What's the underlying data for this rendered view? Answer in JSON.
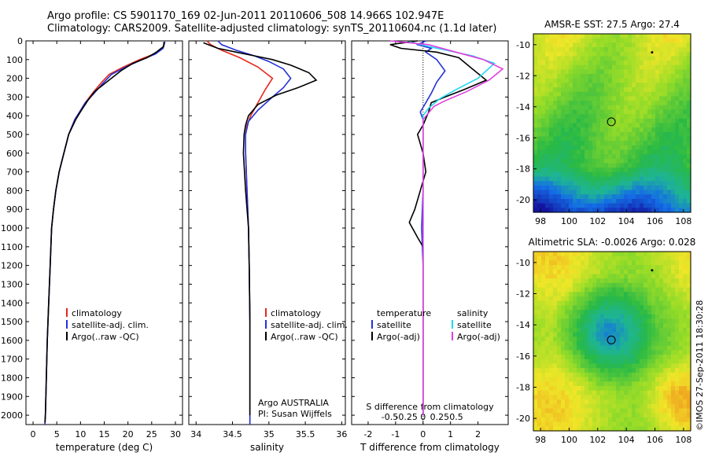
{
  "header": {
    "line1": "Argo profile: CS 5901170_169 02-Jun-2011 20110606_508 14.966S 102.947E",
    "line2": "Climatology: CARS2009. Satellite-adjusted climatology: synTS_20110604.nc (1.1d later)"
  },
  "colors": {
    "climatology": "#e8261e",
    "satellite": "#2432d8",
    "argo": "#000000",
    "sat_sal": "#20d8f0",
    "argo_sal": "#e040e0"
  },
  "y_axis": {
    "ticks": [
      0,
      100,
      200,
      300,
      400,
      500,
      600,
      700,
      800,
      900,
      1000,
      1100,
      1200,
      1300,
      1400,
      1500,
      1600,
      1700,
      1800,
      1900,
      2000
    ],
    "range": [
      0,
      2050
    ]
  },
  "chart_data": [
    {
      "type": "line",
      "name": "temperature",
      "xlabel": "temperature (deg C)",
      "xlim": [
        -1.5,
        31.5
      ],
      "xticks": [
        0,
        5,
        10,
        15,
        20,
        25,
        30
      ],
      "legend": [
        "climatology",
        "satellite-adj. clim.",
        "Argo(..raw -QC)"
      ],
      "series": [
        {
          "name": "climatology",
          "color": "climatology",
          "points": [
            [
              27.8,
              5
            ],
            [
              27.3,
              40
            ],
            [
              25.5,
              70
            ],
            [
              22.5,
              100
            ],
            [
              19,
              140
            ],
            [
              16,
              180
            ],
            [
              14.5,
              220
            ],
            [
              12.5,
              280
            ],
            [
              11,
              330
            ],
            [
              9.8,
              380
            ],
            [
              8.8,
              420
            ],
            [
              7.5,
              500
            ],
            [
              6.5,
              600
            ],
            [
              5.5,
              700
            ],
            [
              4.8,
              800
            ],
            [
              4.3,
              900
            ],
            [
              3.9,
              1000
            ],
            [
              3.6,
              1200
            ],
            [
              3.3,
              1400
            ],
            [
              3,
              1600
            ],
            [
              2.8,
              1800
            ],
            [
              2.6,
              2000
            ],
            [
              2.5,
              2050
            ]
          ]
        },
        {
          "name": "satellite-adj. clim.",
          "color": "satellite",
          "points": [
            [
              27.8,
              5
            ],
            [
              27.4,
              40
            ],
            [
              25.8,
              70
            ],
            [
              23,
              100
            ],
            [
              19.5,
              140
            ],
            [
              16.5,
              180
            ],
            [
              14.6,
              230
            ],
            [
              12.7,
              285
            ],
            [
              11,
              330
            ],
            [
              9.8,
              380
            ],
            [
              8.8,
              420
            ],
            [
              7.5,
              500
            ],
            [
              6.5,
              600
            ],
            [
              5.5,
              700
            ],
            [
              4.8,
              800
            ],
            [
              4.3,
              900
            ],
            [
              3.9,
              1000
            ],
            [
              3.6,
              1200
            ],
            [
              3.3,
              1400
            ],
            [
              3,
              1600
            ],
            [
              2.8,
              1800
            ],
            [
              2.6,
              2000
            ],
            [
              2.5,
              2050
            ]
          ]
        },
        {
          "name": "Argo(..raw -QC)",
          "color": "argo",
          "points": [
            [
              27.6,
              5
            ],
            [
              27.5,
              30
            ],
            [
              26,
              60
            ],
            [
              24,
              90
            ],
            [
              21,
              120
            ],
            [
              18.5,
              160
            ],
            [
              17,
              190
            ],
            [
              16,
              210
            ],
            [
              14.5,
              240
            ],
            [
              13,
              270
            ],
            [
              11.5,
              320
            ],
            [
              10.2,
              370
            ],
            [
              9,
              420
            ],
            [
              7.5,
              500
            ],
            [
              6.5,
              600
            ],
            [
              5.5,
              700
            ],
            [
              4.8,
              800
            ],
            [
              4.3,
              900
            ],
            [
              3.9,
              1000
            ],
            [
              3.6,
              1200
            ],
            [
              3.3,
              1400
            ],
            [
              3,
              1600
            ],
            [
              2.8,
              1800
            ],
            [
              2.6,
              2000
            ],
            [
              2.5,
              2040
            ]
          ]
        }
      ]
    },
    {
      "type": "line",
      "name": "salinity",
      "xlabel": "salinity",
      "xlim": [
        33.9,
        36.05
      ],
      "xticks": [
        34,
        34.5,
        35,
        35.5,
        36
      ],
      "legend": [
        "climatology",
        "satellite-adj. clim.",
        "Argo(..raw -QC)"
      ],
      "annotation": [
        "Argo AUSTRALIA",
        "PI: Susan Wijffels"
      ],
      "series": [
        {
          "name": "climatology",
          "color": "climatology",
          "points": [
            [
              34.15,
              0
            ],
            [
              34.2,
              20
            ],
            [
              34.35,
              50
            ],
            [
              34.6,
              90
            ],
            [
              34.85,
              140
            ],
            [
              35.05,
              200
            ],
            [
              34.95,
              260
            ],
            [
              34.85,
              330
            ],
            [
              34.75,
              400
            ],
            [
              34.7,
              450
            ],
            [
              34.68,
              500
            ],
            [
              34.68,
              600
            ],
            [
              34.7,
              800
            ],
            [
              34.72,
              1000
            ],
            [
              34.73,
              1200
            ],
            [
              34.74,
              1500
            ],
            [
              34.74,
              1800
            ],
            [
              34.74,
              2050
            ]
          ]
        },
        {
          "name": "satellite-adj. clim.",
          "color": "satellite",
          "points": [
            [
              34.3,
              0
            ],
            [
              34.35,
              20
            ],
            [
              34.55,
              50
            ],
            [
              34.8,
              80
            ],
            [
              35,
              110
            ],
            [
              35.2,
              150
            ],
            [
              35.3,
              200
            ],
            [
              35.2,
              250
            ],
            [
              35.05,
              300
            ],
            [
              34.85,
              370
            ],
            [
              34.72,
              430
            ],
            [
              34.68,
              500
            ],
            [
              34.68,
              600
            ],
            [
              34.7,
              800
            ],
            [
              34.72,
              1000
            ],
            [
              34.73,
              1200
            ],
            [
              34.74,
              1500
            ],
            [
              34.74,
              1800
            ],
            [
              34.74,
              2050
            ]
          ]
        },
        {
          "name": "Argo(..raw -QC)",
          "color": "argo",
          "points": [
            [
              34.1,
              10
            ],
            [
              34.3,
              40
            ],
            [
              34.55,
              60
            ],
            [
              34.8,
              80
            ],
            [
              35.05,
              100
            ],
            [
              35.3,
              130
            ],
            [
              35.55,
              170
            ],
            [
              35.65,
              210
            ],
            [
              35.4,
              250
            ],
            [
              35.1,
              290
            ],
            [
              34.85,
              340
            ],
            [
              34.72,
              400
            ],
            [
              34.68,
              450
            ],
            [
              34.66,
              500
            ],
            [
              34.65,
              600
            ],
            [
              34.68,
              800
            ],
            [
              34.72,
              1000
            ],
            [
              34.73,
              1200
            ],
            [
              34.74,
              1500
            ],
            [
              34.74,
              1800
            ],
            [
              34.74,
              2000
            ]
          ]
        }
      ]
    },
    {
      "type": "line",
      "name": "difference",
      "xlabel": "T difference from climatology",
      "xlabel_top": "S difference from climatology",
      "xlim": [
        -2.6,
        3.1
      ],
      "xticks": [
        -2,
        -1,
        0,
        1,
        2
      ],
      "xticks_top": [
        -0.5,
        -0.25,
        0,
        0.25,
        0.5
      ],
      "legend": [
        "temperature",
        "satellite",
        "Argo(-adj)"
      ],
      "legend2": [
        "salinity",
        "satellite",
        "Argo(-adj)"
      ],
      "series": [
        {
          "name": "temperature satellite",
          "color": "satellite",
          "points": [
            [
              0.1,
              0
            ],
            [
              -0.2,
              20
            ],
            [
              0.3,
              40
            ],
            [
              0.1,
              60
            ],
            [
              0.5,
              100
            ],
            [
              0.8,
              160
            ],
            [
              0.5,
              220
            ],
            [
              0.3,
              280
            ],
            [
              0.1,
              330
            ],
            [
              -0.1,
              380
            ],
            [
              0,
              420
            ],
            [
              0,
              600
            ],
            [
              0,
              800
            ],
            [
              -0.05,
              1000
            ],
            [
              0,
              1200
            ],
            [
              0,
              1500
            ],
            [
              0,
              2000
            ]
          ]
        },
        {
          "name": "temperature Argo(-adj)",
          "color": "argo",
          "points": [
            [
              -0.2,
              0
            ],
            [
              -1.2,
              20
            ],
            [
              -0.8,
              40
            ],
            [
              0.5,
              60
            ],
            [
              1.3,
              90
            ],
            [
              1.8,
              150
            ],
            [
              2.3,
              210
            ],
            [
              1.5,
              260
            ],
            [
              0.8,
              300
            ],
            [
              0.3,
              330
            ],
            [
              0.2,
              380
            ],
            [
              0,
              450
            ],
            [
              -0.2,
              500
            ],
            [
              0,
              600
            ],
            [
              0.1,
              700
            ],
            [
              -0.1,
              800
            ],
            [
              -0.3,
              900
            ],
            [
              -0.5,
              970
            ],
            [
              -0.2,
              1050
            ],
            [
              0,
              1100
            ],
            [
              0,
              1300
            ],
            [
              0,
              1500
            ],
            [
              0,
              2000
            ]
          ]
        },
        {
          "name": "salinity satellite",
          "color": "sat_sal",
          "points": [
            [
              -0.5,
              5
            ],
            [
              0.2,
              30
            ],
            [
              1.8,
              80
            ],
            [
              2.6,
              120
            ],
            [
              2,
              200
            ],
            [
              1.2,
              260
            ],
            [
              0.6,
              310
            ],
            [
              0.2,
              360
            ],
            [
              0,
              400
            ],
            [
              0,
              600
            ],
            [
              0,
              800
            ],
            [
              0,
              1000
            ],
            [
              0,
              1200
            ],
            [
              0,
              1500
            ],
            [
              0,
              2000
            ]
          ]
        },
        {
          "name": "salinity Argo(-adj)",
          "color": "argo_sal",
          "points": [
            [
              -1.2,
              0
            ],
            [
              0.2,
              20
            ],
            [
              1.2,
              60
            ],
            [
              2.2,
              100
            ],
            [
              2.9,
              150
            ],
            [
              2.4,
              210
            ],
            [
              1.6,
              270
            ],
            [
              0.8,
              320
            ],
            [
              0.4,
              350
            ],
            [
              0,
              420
            ],
            [
              0,
              600
            ],
            [
              0,
              800
            ],
            [
              0,
              1000
            ],
            [
              0,
              1200
            ],
            [
              0,
              1500
            ],
            [
              0,
              2000
            ]
          ]
        }
      ]
    },
    {
      "type": "heatmap",
      "name": "sst-map",
      "title": "AMSR-E SST: 27.5 Argo: 27.4",
      "xticks": [
        98,
        100,
        102,
        104,
        106,
        108
      ],
      "yticks": [
        -10,
        -12,
        -14,
        -16,
        -18,
        -20
      ],
      "xlim": [
        97.5,
        108.5
      ],
      "ylim": [
        -20.8,
        -9.3
      ],
      "marker": [
        102.95,
        -14.97
      ]
    },
    {
      "type": "heatmap",
      "name": "sla-map",
      "title": "Altimetric SLA: -0.0026 Argo: 0.028",
      "xticks": [
        98,
        100,
        102,
        104,
        106,
        108
      ],
      "yticks": [
        -10,
        -12,
        -14,
        -16,
        -18,
        -20
      ],
      "xlim": [
        97.5,
        108.5
      ],
      "ylim": [
        -20.8,
        -9.3
      ],
      "marker": [
        102.95,
        -14.97
      ]
    }
  ],
  "side_label": "©IMOS 27-Sep-2011 18:30:28"
}
